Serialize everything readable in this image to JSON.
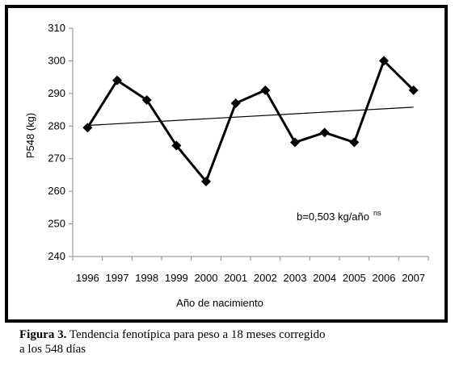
{
  "chart_data": {
    "type": "line",
    "categories": [
      "1996",
      "1997",
      "1998",
      "1999",
      "2000",
      "2001",
      "2002",
      "2003",
      "2004",
      "2005",
      "2006",
      "2007"
    ],
    "series": [
      {
        "values": [
          279.5,
          294,
          288,
          274,
          263,
          287,
          291,
          275,
          278,
          275,
          300,
          291
        ]
      }
    ],
    "trendline": {
      "start": 280.2,
      "end": 285.8
    },
    "xlabel": "Año de nacimiento",
    "ylabel": "P548 (kg)",
    "ylim": [
      240,
      310
    ],
    "yticks": [
      240,
      250,
      260,
      270,
      280,
      290,
      300,
      310
    ],
    "grid": false,
    "annotation": {
      "text": "b=0,503 kg/año",
      "superscript": "ns"
    }
  },
  "caption": {
    "label": "Figura 3.",
    "line1": "Tendencia fenotípica para peso a 18 meses corregido",
    "line2": "a los 548 días"
  }
}
